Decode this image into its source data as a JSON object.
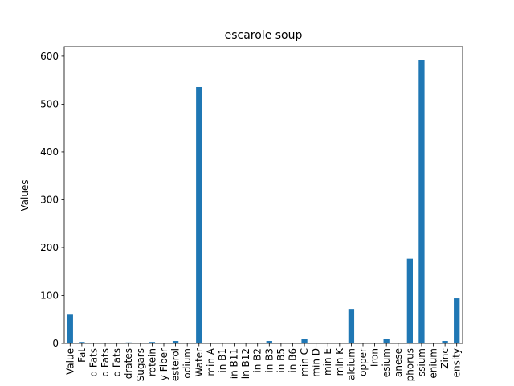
{
  "chart_data": {
    "type": "bar",
    "title": "escarole soup",
    "xlabel": "",
    "ylabel": "Values",
    "ylim": [
      0,
      620
    ],
    "yticks": [
      0,
      100,
      200,
      300,
      400,
      500,
      600
    ],
    "grid": false,
    "legend": "none",
    "bar_color": "#1f77b4",
    "categories": [
      "Value",
      "Fat",
      "d Fats",
      "d Fats",
      "d Fats",
      "drates",
      "Sugars",
      "rotein",
      "y Fiber",
      "esterol",
      "odium",
      "Water",
      "min A",
      "in B1",
      "in B11",
      "in B12",
      "in B2",
      "in B3",
      "in B5",
      "in B6",
      "min C",
      "min D",
      "min E",
      "min K",
      "alcium",
      "opper",
      "Iron",
      "esium",
      "anese",
      "phorus",
      "ssium",
      "enium",
      "Zinc",
      "ensity"
    ],
    "values": [
      60,
      3,
      1,
      1,
      0.5,
      2,
      0.5,
      3,
      0.5,
      5,
      1,
      536,
      0,
      0,
      0,
      0,
      0,
      5,
      0,
      0,
      10,
      0,
      0,
      0,
      72,
      0,
      1,
      10,
      1,
      177,
      592,
      0,
      5,
      94
    ]
  }
}
